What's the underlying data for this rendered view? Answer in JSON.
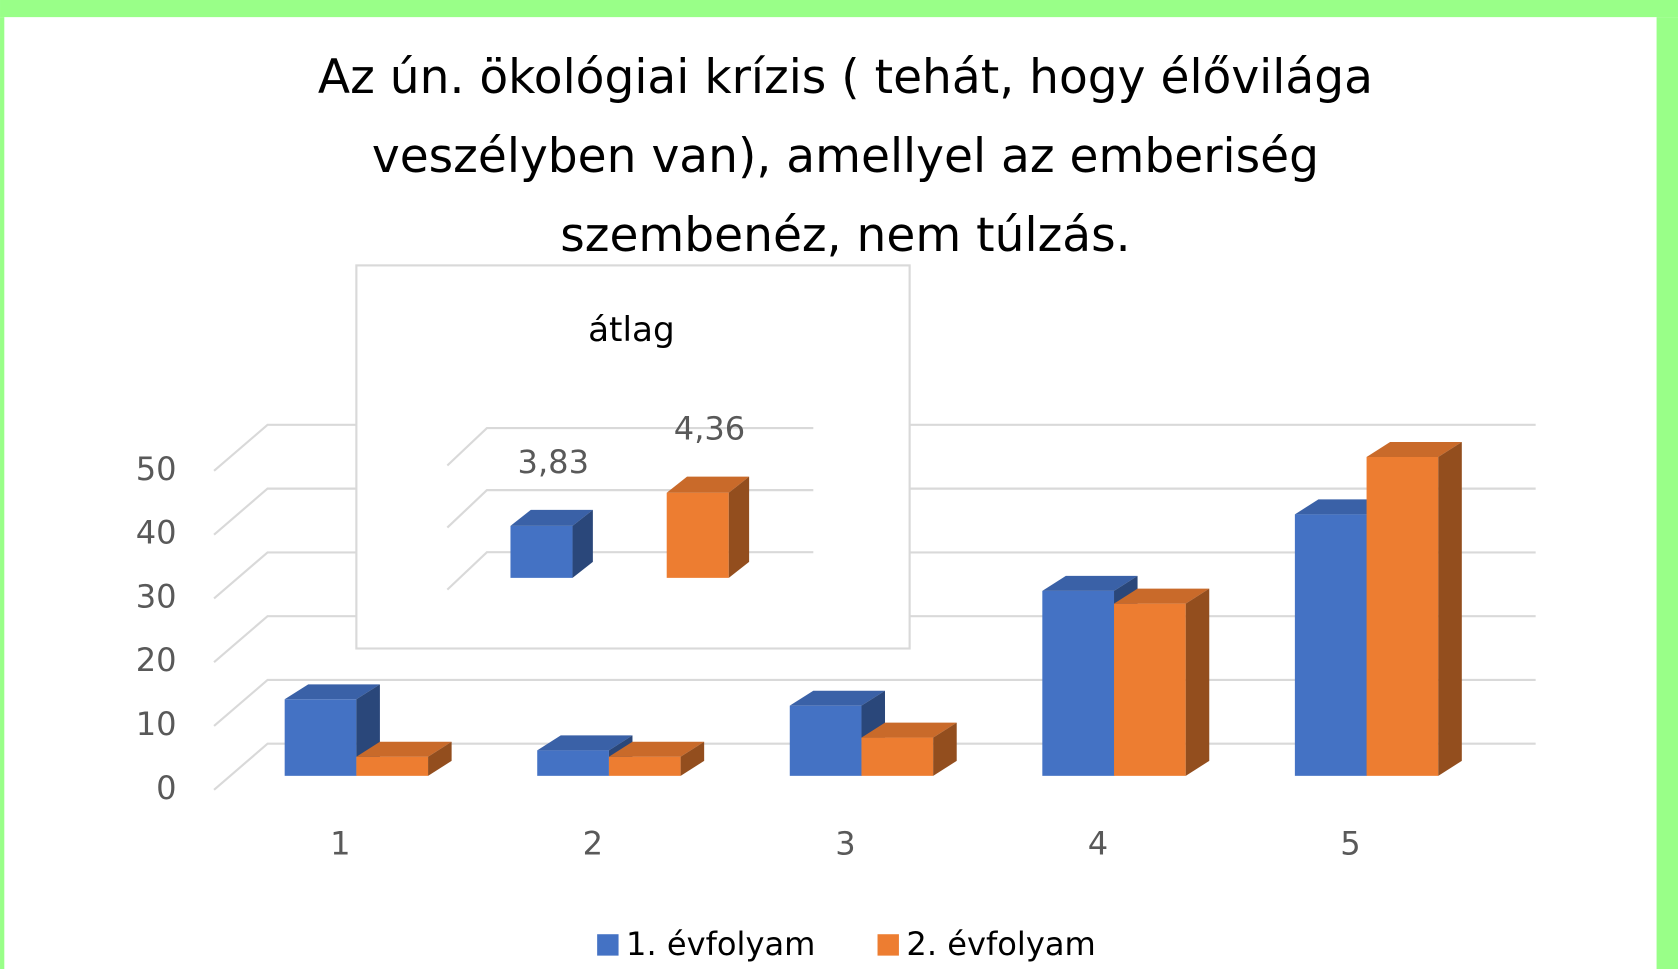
{
  "chart_data": [
    {
      "type": "bar3d",
      "title": [
        "Az ún. ökológiai krízis ( tehát, hogy élővilága",
        "veszélyben  van), amellyel az emberiség",
        "szembenéz,  nem túlzás."
      ],
      "categories": [
        "1",
        "2",
        "3",
        "4",
        "5"
      ],
      "series": [
        {
          "name": "1. évfolyam",
          "color": "#4472c4",
          "values": [
            12,
            4,
            11,
            29,
            41
          ]
        },
        {
          "name": "2. évfolyam",
          "color": "#ed7d31",
          "values": [
            3,
            3,
            6,
            27,
            50
          ]
        }
      ],
      "ylim": [
        0,
        50
      ],
      "yticks": [
        0,
        10,
        20,
        30,
        40,
        50
      ],
      "grid": true,
      "legend": "bottom"
    },
    {
      "type": "bar3d-inset",
      "title": "átlag",
      "series": [
        {
          "color": "#4472c4",
          "values": [
            3.83
          ],
          "value_labels": [
            "3,83"
          ]
        },
        {
          "color": "#ed7d31",
          "values": [
            4.36
          ],
          "value_labels": [
            "4,36"
          ]
        }
      ],
      "ylim": [
        3,
        5
      ]
    }
  ]
}
